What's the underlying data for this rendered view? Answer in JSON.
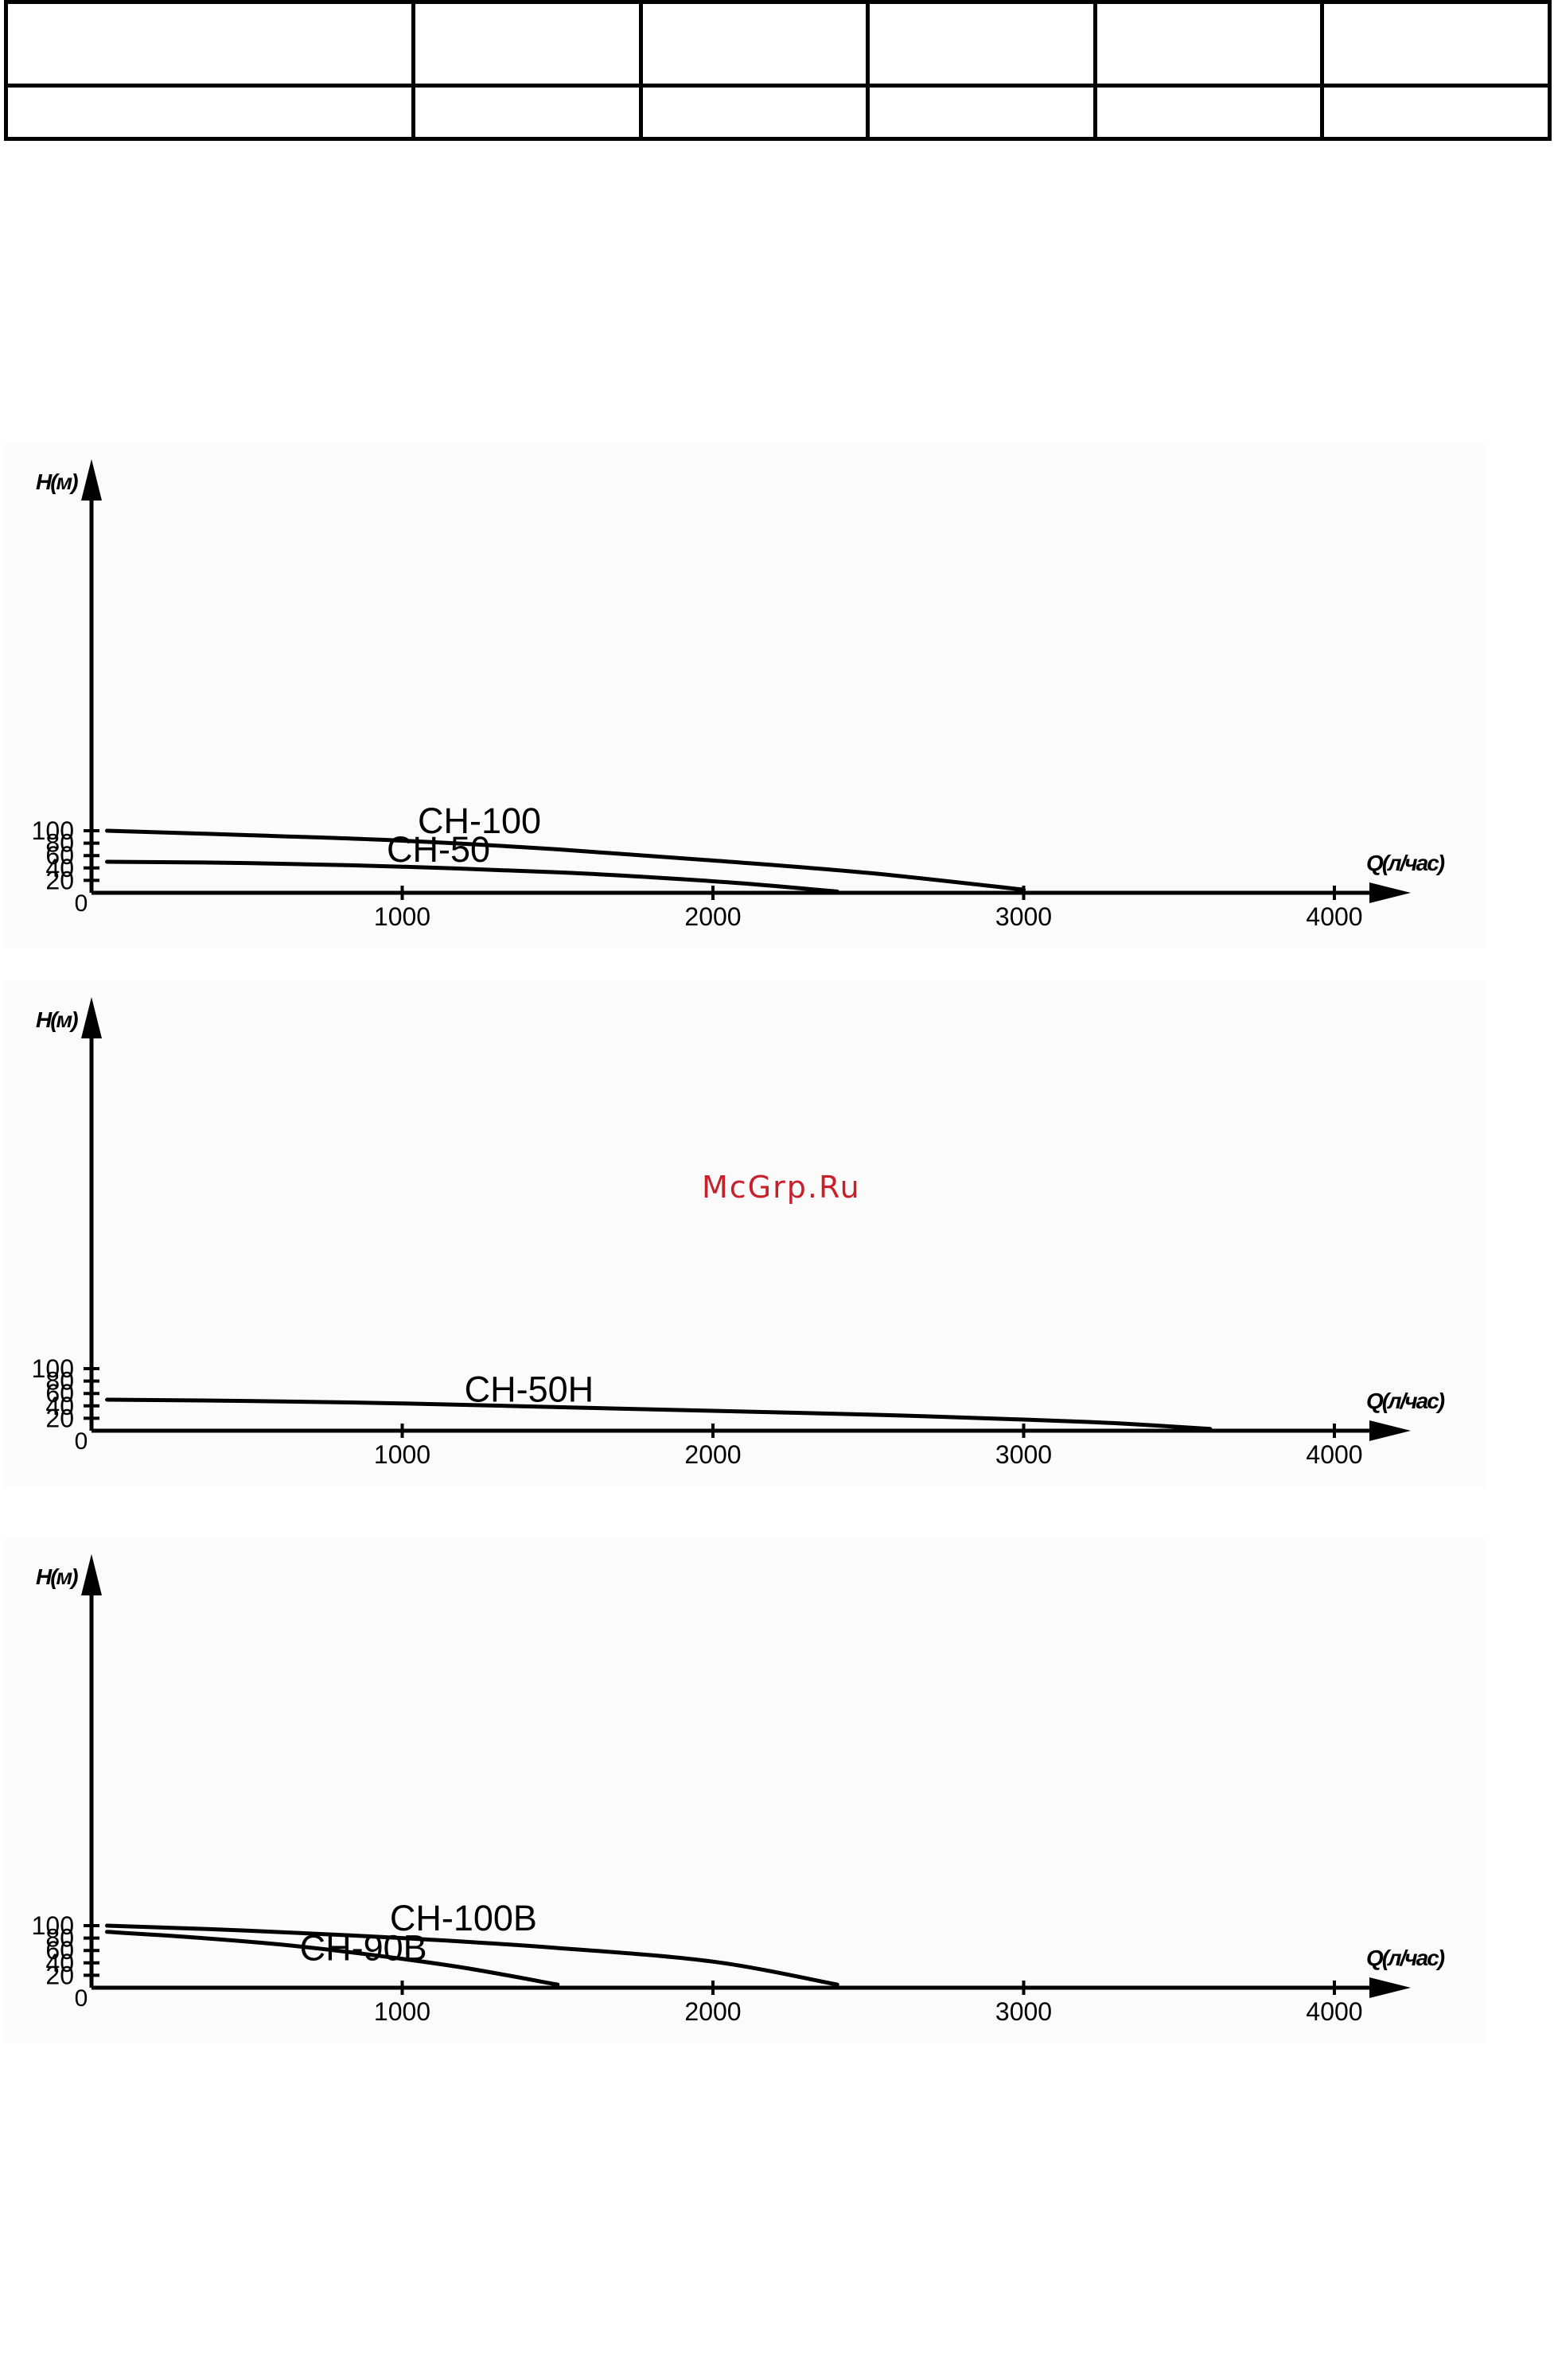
{
  "watermark": "McGrp.Ru",
  "colors": {
    "ink": "#000000",
    "panel": "#fbfbfb",
    "watermark": "#c8202a"
  },
  "chart_data": [
    {
      "type": "line",
      "ylabel": "H(м)",
      "xlabel": "Q(л/час)",
      "origin_label": "0",
      "xlim": [
        0,
        4000
      ],
      "ylim": [
        0,
        100
      ],
      "xticks": [
        1000,
        2000,
        3000,
        4000
      ],
      "yticks": [
        20,
        40,
        60,
        80,
        100
      ],
      "grid": false,
      "series": [
        {
          "name": "CH-100",
          "label_at": [
            1050,
            96
          ],
          "points": [
            [
              50,
              100
            ],
            [
              500,
              93
            ],
            [
              1000,
              84
            ],
            [
              1500,
              70
            ],
            [
              2000,
              52
            ],
            [
              2500,
              32
            ],
            [
              3000,
              5
            ]
          ]
        },
        {
          "name": "CH-50",
          "label_at": [
            950,
            50
          ],
          "points": [
            [
              50,
              50
            ],
            [
              500,
              48
            ],
            [
              1000,
              42
            ],
            [
              1500,
              33
            ],
            [
              1800,
              25
            ],
            [
              2100,
              15
            ],
            [
              2400,
              2
            ]
          ]
        }
      ]
    },
    {
      "type": "line",
      "ylabel": "H(м)",
      "xlabel": "Q(л/час)",
      "origin_label": "0",
      "xlim": [
        0,
        4000
      ],
      "ylim": [
        0,
        100
      ],
      "xticks": [
        1000,
        2000,
        3000,
        4000
      ],
      "yticks": [
        20,
        40,
        60,
        80,
        100
      ],
      "grid": false,
      "series": [
        {
          "name": "CH-50H",
          "label_at": [
            1200,
            47
          ],
          "points": [
            [
              50,
              50
            ],
            [
              500,
              48
            ],
            [
              1000,
              44
            ],
            [
              1500,
              38
            ],
            [
              2000,
              32
            ],
            [
              2500,
              26
            ],
            [
              3000,
              18
            ],
            [
              3300,
              12
            ],
            [
              3600,
              3
            ]
          ]
        }
      ]
    },
    {
      "type": "line",
      "ylabel": "H(м)",
      "xlabel": "Q(л/час)",
      "origin_label": "0",
      "xlim": [
        0,
        4000
      ],
      "ylim": [
        0,
        100
      ],
      "xticks": [
        1000,
        2000,
        3000,
        4000
      ],
      "yticks": [
        20,
        40,
        60,
        80,
        100
      ],
      "grid": false,
      "series": [
        {
          "name": "CH-100B",
          "label_at": [
            960,
            92
          ],
          "points": [
            [
              50,
              100
            ],
            [
              500,
              92
            ],
            [
              1000,
              80
            ],
            [
              1500,
              64
            ],
            [
              2000,
              42
            ],
            [
              2400,
              5
            ]
          ]
        },
        {
          "name": "CH-90B",
          "label_at": [
            670,
            44
          ],
          "points": [
            [
              50,
              90
            ],
            [
              300,
              82
            ],
            [
              600,
              70
            ],
            [
              900,
              53
            ],
            [
              1200,
              32
            ],
            [
              1500,
              5
            ]
          ]
        }
      ]
    }
  ]
}
